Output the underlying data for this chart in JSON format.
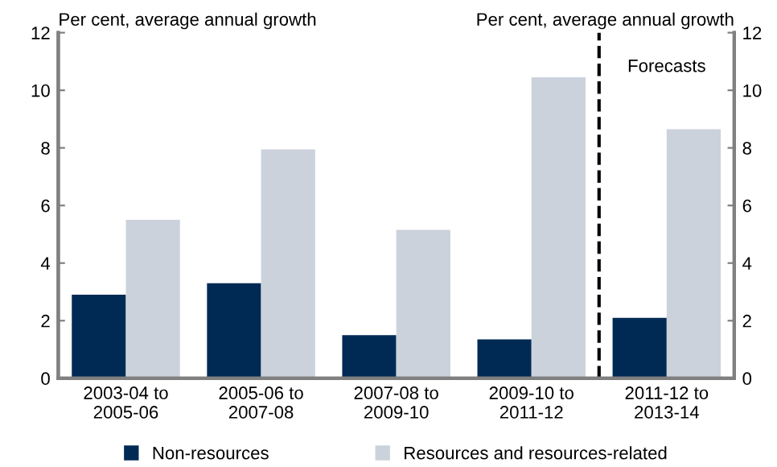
{
  "chart_data": {
    "type": "bar",
    "categories": [
      "2003-04 to\n2005-06",
      "2005-06 to\n2007-08",
      "2007-08 to\n2009-10",
      "2009-10 to\n2011-12",
      "2011-12 to\n2013-14"
    ],
    "series": [
      {
        "name": "Non-resources",
        "color": "#002a54",
        "values": [
          2.9,
          3.3,
          1.5,
          1.35,
          2.1
        ]
      },
      {
        "name": "Resources and resources-related",
        "color": "#cbd2dc",
        "values": [
          5.5,
          7.95,
          5.15,
          10.45,
          8.65
        ]
      }
    ],
    "ylabel": "Per cent, average annual growth",
    "y2label": "Per cent, average annual growth",
    "ylim": [
      0,
      12
    ],
    "yticks": [
      0,
      2,
      4,
      6,
      8,
      10,
      12
    ],
    "y2lim": [
      0,
      12
    ],
    "y2ticks": [
      0,
      2,
      4,
      6,
      8,
      10,
      12
    ],
    "annotations": [
      "Forecasts"
    ],
    "legend": "bottom",
    "grid": false
  }
}
